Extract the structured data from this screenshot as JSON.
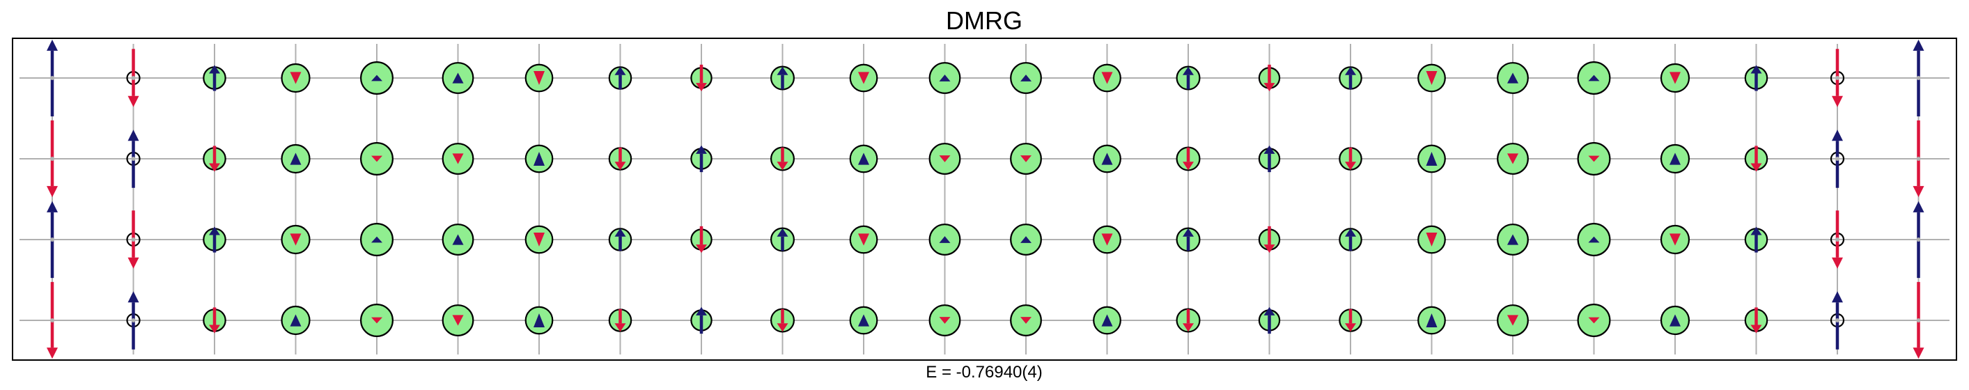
{
  "chart_data": {
    "type": "scatter",
    "title": "DMRG",
    "xlabel": "E = -0.76940(4)",
    "ylabel": "",
    "grid": true,
    "lattice": {
      "columns": 24,
      "rows": 4
    },
    "marker_encoding": "circle radius = hole density, arrow = spin (up/down)",
    "colors": {
      "circle_fill": "#90ee90",
      "spin_up": "#191970",
      "spin_down": "#dc143c",
      "grid": "#b0b0b0",
      "frame": "#000000"
    },
    "columns": [
      {
        "x": 1,
        "circle": 0.0,
        "spin": [
          0.95,
          -0.95,
          0.95,
          -0.95
        ]
      },
      {
        "x": 2,
        "circle": 0.2,
        "spin": [
          -0.72,
          0.72,
          -0.72,
          0.72
        ]
      },
      {
        "x": 3,
        "circle": 0.38,
        "spin": [
          0.32,
          -0.32,
          0.32,
          -0.32
        ]
      },
      {
        "x": 4,
        "circle": 0.5,
        "spin": [
          -0.12,
          0.12,
          -0.12,
          0.12
        ]
      },
      {
        "x": 5,
        "circle": 0.58,
        "spin": [
          0.03,
          -0.03,
          0.03,
          -0.03
        ]
      },
      {
        "x": 6,
        "circle": 0.55,
        "spin": [
          0.1,
          -0.1,
          0.1,
          -0.1
        ]
      },
      {
        "x": 7,
        "circle": 0.48,
        "spin": [
          -0.15,
          0.15,
          -0.15,
          0.15
        ]
      },
      {
        "x": 8,
        "circle": 0.38,
        "spin": [
          0.28,
          -0.28,
          0.28,
          -0.28
        ]
      },
      {
        "x": 9,
        "circle": 0.35,
        "spin": [
          -0.33,
          0.33,
          -0.33,
          0.33
        ]
      },
      {
        "x": 10,
        "circle": 0.4,
        "spin": [
          0.28,
          -0.28,
          0.28,
          -0.28
        ]
      },
      {
        "x": 11,
        "circle": 0.48,
        "spin": [
          -0.12,
          0.12,
          -0.12,
          0.12
        ]
      },
      {
        "x": 12,
        "circle": 0.55,
        "spin": [
          0.04,
          -0.04,
          0.04,
          -0.04
        ]
      },
      {
        "x": 13,
        "circle": 0.55,
        "spin": [
          0.04,
          -0.04,
          0.04,
          -0.04
        ]
      },
      {
        "x": 14,
        "circle": 0.48,
        "spin": [
          -0.12,
          0.12,
          -0.12,
          0.12
        ]
      },
      {
        "x": 15,
        "circle": 0.4,
        "spin": [
          0.28,
          -0.28,
          0.28,
          -0.28
        ]
      },
      {
        "x": 16,
        "circle": 0.35,
        "spin": [
          -0.33,
          0.33,
          -0.33,
          0.33
        ]
      },
      {
        "x": 17,
        "circle": 0.38,
        "spin": [
          0.28,
          -0.28,
          0.28,
          -0.28
        ]
      },
      {
        "x": 18,
        "circle": 0.48,
        "spin": [
          -0.15,
          0.15,
          -0.15,
          0.15
        ]
      },
      {
        "x": 19,
        "circle": 0.55,
        "spin": [
          0.1,
          -0.1,
          0.1,
          -0.1
        ]
      },
      {
        "x": 20,
        "circle": 0.58,
        "spin": [
          0.03,
          -0.03,
          0.03,
          -0.03
        ]
      },
      {
        "x": 21,
        "circle": 0.5,
        "spin": [
          -0.12,
          0.12,
          -0.12,
          0.12
        ]
      },
      {
        "x": 22,
        "circle": 0.38,
        "spin": [
          0.32,
          -0.32,
          0.32,
          -0.32
        ]
      },
      {
        "x": 23,
        "circle": 0.2,
        "spin": [
          -0.72,
          0.72,
          -0.72,
          0.72
        ]
      },
      {
        "x": 24,
        "circle": 0.0,
        "spin": [
          0.95,
          -0.95,
          0.95,
          -0.95
        ]
      }
    ]
  }
}
